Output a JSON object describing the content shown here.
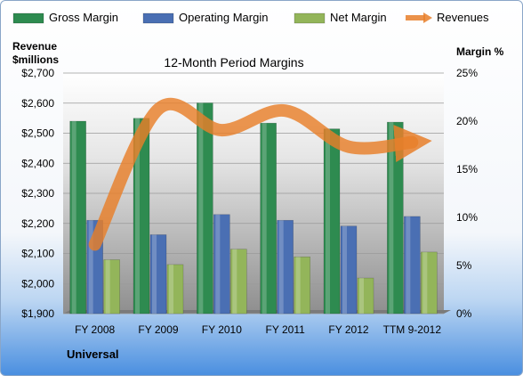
{
  "chart_data": {
    "type": "bar",
    "title": "12-Month Period Margins",
    "company": "Universal",
    "categories": [
      "FY 2008",
      "FY 2009",
      "FY 2010",
      "FY 2011",
      "FY 2012",
      "TTM 9-2012"
    ],
    "left_axis": {
      "label_line1": "Revenue",
      "label_line2": "$millions",
      "min": 1900,
      "max": 2700,
      "step": 100,
      "ticks": [
        "$1,900",
        "$2,000",
        "$2,100",
        "$2,200",
        "$2,300",
        "$2,400",
        "$2,500",
        "$2,600",
        "$2,700"
      ]
    },
    "right_axis": {
      "label": "Margin %",
      "min": 0,
      "max": 25,
      "step": 5,
      "ticks": [
        "0%",
        "5%",
        "10%",
        "15%",
        "20%",
        "25%"
      ]
    },
    "series": [
      {
        "name": "Gross Margin",
        "axis": "right",
        "color": "#2e8b50",
        "values": [
          20.0,
          20.3,
          21.9,
          19.8,
          19.2,
          19.9
        ]
      },
      {
        "name": "Operating Margin",
        "axis": "right",
        "color": "#4a6fb3",
        "values": [
          9.7,
          8.2,
          10.3,
          9.7,
          9.1,
          10.1
        ]
      },
      {
        "name": "Net Margin",
        "axis": "right",
        "color": "#93b55a",
        "values": [
          5.6,
          5.1,
          6.7,
          5.9,
          3.7,
          6.4
        ]
      },
      {
        "name": "Revenues",
        "axis": "left",
        "color": "#e87f2a",
        "type": "line",
        "values": [
          2130,
          2580,
          2510,
          2575,
          2455,
          2470
        ]
      }
    ],
    "grid": true,
    "legend_position": "top"
  }
}
